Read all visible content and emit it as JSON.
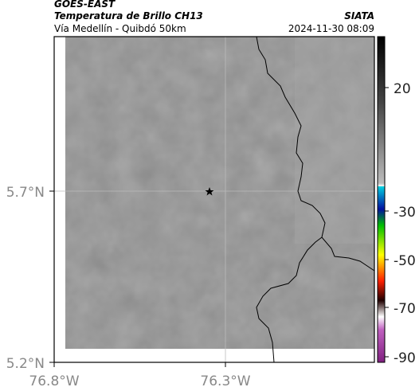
{
  "header": {
    "platform": "GOES-EAST",
    "product": "Temperatura de Brillo CH13",
    "region": "Vía Medellín - Quibdó 50km",
    "source": "SIATA",
    "datetime": "2024-11-30 08:09"
  },
  "map": {
    "lat_ticks": [
      "5.7°N",
      "5.2°N"
    ],
    "lon_ticks": [
      "76.8°W",
      "76.3°W"
    ]
  },
  "colorbar": {
    "ticks": [
      20,
      -30,
      -50,
      -70,
      -90
    ]
  }
}
